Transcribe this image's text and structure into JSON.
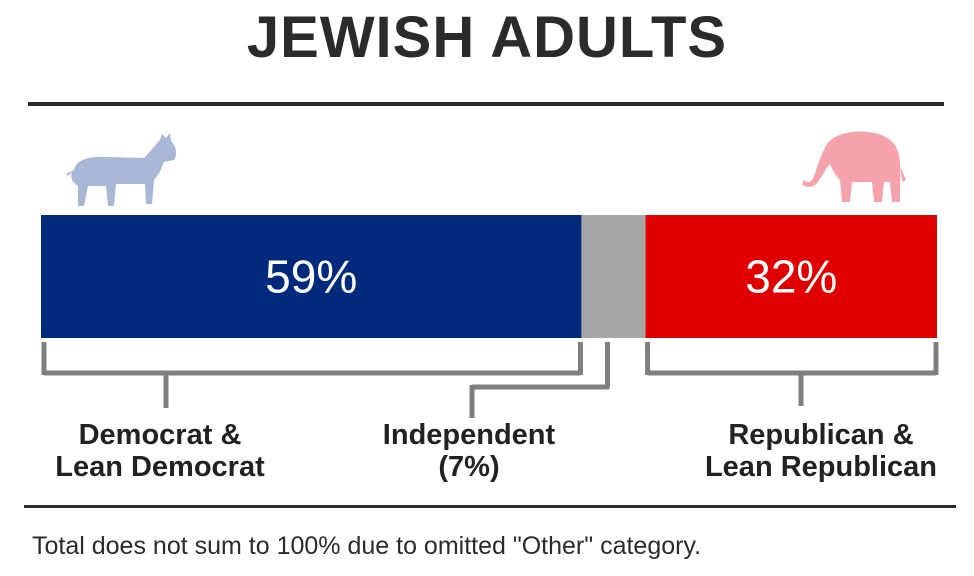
{
  "title": "JEWISH ADULTS",
  "footnote": "Total does not sum to 100% due to omitted \"Other\" category.",
  "icons": {
    "left": "donkey-icon",
    "right": "elephant-icon"
  },
  "colors": {
    "democrat": "#022a7c",
    "independent": "#a6a6a6",
    "republican": "#e00000",
    "donkey": "#a8b7d6",
    "elephant": "#f5a2ad",
    "bracket": "#7f7f7f"
  },
  "chart_data": {
    "type": "bar",
    "orientation": "horizontal-stacked",
    "title": "JEWISH ADULTS",
    "categories": [
      "Democrat & Lean Democrat",
      "Independent",
      "Republican & Lean Republican"
    ],
    "values": [
      59,
      7,
      32
    ],
    "value_labels": [
      "59%",
      "",
      "32%"
    ],
    "segment_labels": [
      [
        "Democrat &",
        "Lean Democrat"
      ],
      [
        "Independent",
        "(7%)"
      ],
      [
        "Republican &",
        "Lean Republican"
      ]
    ],
    "unit": "%"
  }
}
